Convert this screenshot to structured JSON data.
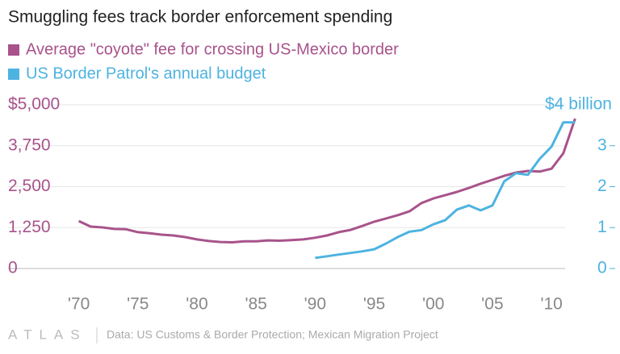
{
  "chart_data": {
    "type": "line",
    "title": "Smuggling fees track border enforcement spending",
    "source": "Data: US Customs & Border Protection; Mexican Migration Project",
    "brand": "ATLAS",
    "grid": true,
    "xlim": [
      1968.8,
      2013.2
    ],
    "xticks": [
      {
        "value": 1970,
        "label": "'70"
      },
      {
        "value": 1975,
        "label": "'75"
      },
      {
        "value": 1980,
        "label": "'80"
      },
      {
        "value": 1985,
        "label": "'85"
      },
      {
        "value": 1990,
        "label": "'90"
      },
      {
        "value": 1995,
        "label": "'95"
      },
      {
        "value": 2000,
        "label": "'00"
      },
      {
        "value": 2005,
        "label": "'05"
      },
      {
        "value": 2010,
        "label": "'10"
      }
    ],
    "ylim": [
      0,
      5000
    ],
    "yticks": [
      0,
      {
        "value": 1250,
        "label": "1,250"
      },
      {
        "value": 2500,
        "label": "2,500"
      },
      {
        "value": 3750,
        "label": "3,750"
      },
      {
        "value": 5000,
        "label": "$5,000"
      }
    ],
    "y2lim": [
      0,
      4
    ],
    "y2ticks": [
      0,
      1,
      2,
      3,
      {
        "value": 4,
        "label": "$4 billion"
      }
    ],
    "series": [
      {
        "name": "Average \"coyote\" fee for crossing US-Mexico border",
        "color": "#a8538b",
        "x": [
          1970,
          1971,
          1972,
          1973,
          1974,
          1975,
          1976,
          1977,
          1978,
          1979,
          1980,
          1981,
          1982,
          1983,
          1984,
          1985,
          1986,
          1987,
          1988,
          1989,
          1990,
          1991,
          1992,
          1993,
          1994,
          1995,
          1996,
          1997,
          1998,
          1999,
          2000,
          2001,
          2002,
          2003,
          2004,
          2005,
          2006,
          2007,
          2008,
          2009,
          2010,
          2011,
          2012
        ],
        "values": [
          1450,
          1280,
          1255,
          1210,
          1200,
          1110,
          1080,
          1035,
          1010,
          960,
          890,
          840,
          810,
          800,
          830,
          830,
          860,
          850,
          870,
          890,
          940,
          1010,
          1110,
          1180,
          1300,
          1430,
          1530,
          1630,
          1750,
          2000,
          2140,
          2240,
          2340,
          2460,
          2590,
          2710,
          2830,
          2930,
          2980,
          2960,
          3050,
          3520,
          4580
        ]
      },
      {
        "name": "US Border Patrol's annual budget",
        "color": "#4db3e0",
        "axis": "y2",
        "x": [
          1990,
          1991,
          1992,
          1993,
          1994,
          1995,
          1996,
          1997,
          1998,
          1999,
          2000,
          2001,
          2002,
          2003,
          2004,
          2005,
          2006,
          2007,
          2008,
          2009,
          2010,
          2011,
          2012
        ],
        "values": [
          0.26,
          0.3,
          0.34,
          0.38,
          0.42,
          0.47,
          0.61,
          0.77,
          0.9,
          0.94,
          1.08,
          1.18,
          1.44,
          1.54,
          1.42,
          1.54,
          2.13,
          2.33,
          2.29,
          2.68,
          2.98,
          3.57,
          3.57
        ]
      }
    ]
  }
}
